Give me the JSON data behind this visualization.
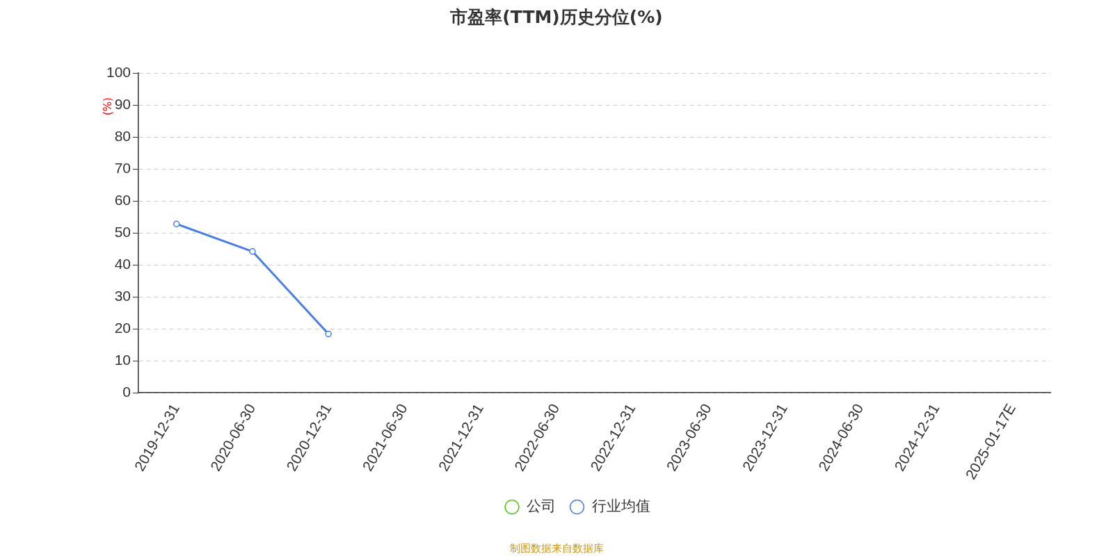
{
  "chart_data": {
    "type": "line",
    "title": "市盈率(TTM)历史分位(%)",
    "ylabel": "(%)",
    "categories": [
      "2019-12-31",
      "2020-06-30",
      "2020-12-31",
      "2021-06-30",
      "2021-12-31",
      "2022-06-30",
      "2022-12-31",
      "2023-06-30",
      "2023-12-31",
      "2024-06-30",
      "2024-12-31",
      "2025-01-17E"
    ],
    "series": [
      {
        "name": "公司",
        "color": "#52c41a",
        "values": [
          null,
          null,
          null,
          null,
          null,
          null,
          null,
          null,
          null,
          null,
          null,
          null
        ]
      },
      {
        "name": "行业均值",
        "color": "#4a7fe0",
        "values": [
          52.8,
          44.2,
          18.4,
          null,
          null,
          null,
          null,
          null,
          null,
          null,
          null,
          null
        ]
      }
    ],
    "ylim": [
      0,
      100
    ],
    "yticks": [
      0,
      10,
      20,
      30,
      40,
      50,
      60,
      70,
      80,
      90,
      100
    ],
    "grid": "y",
    "legend": "bottom",
    "marker": "circle",
    "line_style": "solid",
    "annotations": [
      "制图数据来自数据库"
    ]
  }
}
